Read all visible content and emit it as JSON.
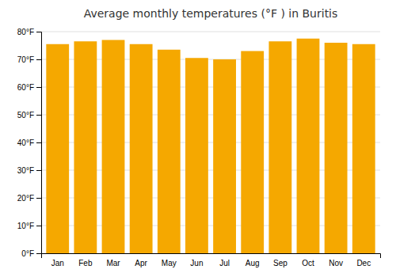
{
  "chart_data": {
    "type": "bar",
    "title": "Average monthly temperatures (°F ) in Buritis",
    "categories": [
      "Jan",
      "Feb",
      "Mar",
      "Apr",
      "May",
      "Jun",
      "Jul",
      "Aug",
      "Sep",
      "Oct",
      "Nov",
      "Dec"
    ],
    "values": [
      75.5,
      76.5,
      77.0,
      75.5,
      73.5,
      70.5,
      70.0,
      73.0,
      76.5,
      77.5,
      76.0,
      75.5
    ],
    "color": "#F5A800",
    "ylim": [
      0,
      80
    ],
    "yticks": [
      {
        "value": 0,
        "label": "0°F"
      },
      {
        "value": 10,
        "label": "10°F"
      },
      {
        "value": 20,
        "label": "20°F"
      },
      {
        "value": 30,
        "label": "30°F"
      },
      {
        "value": 40,
        "label": "40°F"
      },
      {
        "value": 50,
        "label": "50°F"
      },
      {
        "value": 60,
        "label": "60°F"
      },
      {
        "value": 70,
        "label": "70°F"
      },
      {
        "value": 80,
        "label": "80°F"
      }
    ],
    "grid": true
  }
}
